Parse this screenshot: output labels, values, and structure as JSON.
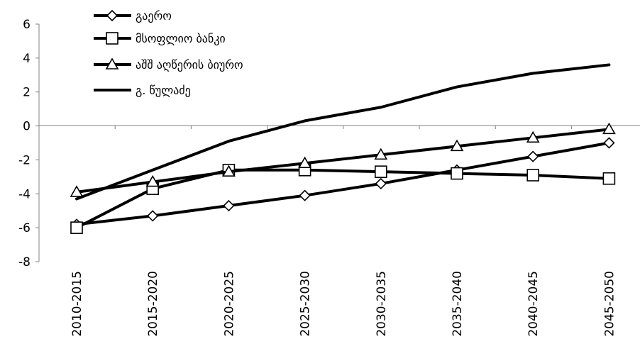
{
  "chart_data": {
    "type": "line",
    "categories": [
      "2010-2015",
      "2015-2020",
      "2020-2025",
      "2025-2030",
      "2030-2035",
      "2035-2040",
      "2040-2045",
      "2045-2050"
    ],
    "ylim": [
      -8,
      6
    ],
    "yticks": [
      -8,
      -6,
      -4,
      -2,
      0,
      2,
      4,
      6
    ],
    "grid": false,
    "legend_position": "top-left",
    "series": [
      {
        "name": "გაერო",
        "marker": "diamond",
        "values": [
          -5.8,
          -5.3,
          -4.7,
          -4.1,
          -3.4,
          -2.6,
          -1.8,
          -1.0
        ]
      },
      {
        "name": "მსოფლიო ბანკი",
        "marker": "square",
        "values": [
          -6.0,
          -3.7,
          -2.6,
          -2.6,
          -2.7,
          -2.8,
          -2.9,
          -3.1
        ]
      },
      {
        "name": "აშშ აღწერის ბიურო",
        "marker": "triangle",
        "values": [
          -3.9,
          -3.3,
          -2.7,
          -2.2,
          -1.7,
          -1.2,
          -0.7,
          -0.2
        ]
      },
      {
        "name": "გ. წულაძე",
        "marker": "none",
        "values": [
          -4.3,
          -2.6,
          -0.9,
          0.3,
          1.1,
          2.3,
          3.1,
          3.6
        ]
      }
    ],
    "colors": {
      "line": "#000000",
      "axis": "#808080",
      "marker_fill": "#ffffff"
    }
  }
}
